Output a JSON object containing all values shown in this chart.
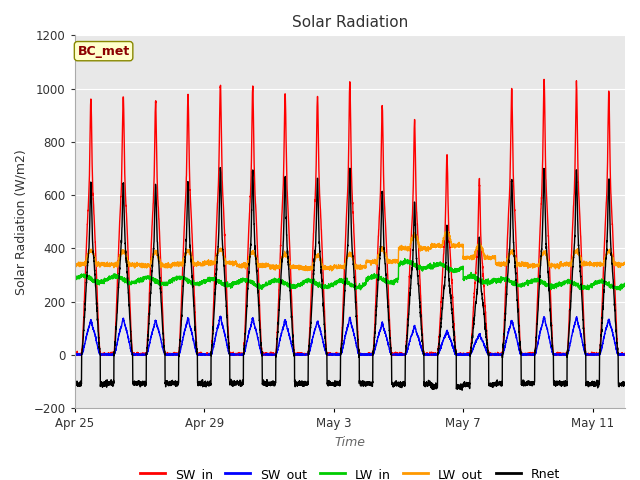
{
  "title": "Solar Radiation",
  "ylabel": "Solar Radiation (W/m2)",
  "xlabel": "Time",
  "annotation": "BC_met",
  "ylim": [
    -200,
    1200
  ],
  "n_days": 17,
  "points_per_day": 288,
  "xtick_labels": [
    "Apr 25",
    "Apr 29",
    "May 3",
    "May 7",
    "May 11"
  ],
  "xtick_positions": [
    0,
    4,
    8,
    12,
    16
  ],
  "series_colors": {
    "SW_in": "#ff0000",
    "SW_out": "#0000ff",
    "LW_in": "#00cc00",
    "LW_out": "#ff9900",
    "Rnet": "#000000"
  },
  "linewidth": 1.0,
  "background_color": "#ffffff",
  "plot_bg_color": "#e8e8e8",
  "grid_color": "#ffffff",
  "SW_in_base": [
    650,
    660,
    640,
    660,
    680,
    670,
    660,
    655,
    670,
    620,
    570,
    480,
    420,
    660,
    680,
    670,
    650
  ],
  "SW_in_spike": [
    960,
    970,
    950,
    970,
    1010,
    1005,
    980,
    970,
    1025,
    930,
    880,
    750,
    650,
    1000,
    1035,
    1025,
    990
  ],
  "SW_out_base": [
    110,
    115,
    110,
    115,
    120,
    115,
    110,
    108,
    115,
    100,
    90,
    75,
    65,
    110,
    120,
    120,
    115
  ],
  "SW_out_spike": [
    130,
    135,
    128,
    138,
    145,
    138,
    130,
    125,
    138,
    118,
    108,
    90,
    78,
    130,
    142,
    140,
    132
  ],
  "LW_in_vals": [
    285,
    283,
    278,
    278,
    273,
    269,
    268,
    266,
    266,
    283,
    338,
    328,
    283,
    273,
    268,
    263,
    263
  ],
  "LW_out_vals": [
    390,
    388,
    385,
    390,
    395,
    385,
    378,
    372,
    378,
    398,
    448,
    458,
    412,
    388,
    382,
    388,
    388
  ],
  "LW_out_night": [
    340,
    338,
    335,
    340,
    345,
    335,
    330,
    325,
    330,
    350,
    400,
    410,
    365,
    340,
    335,
    340,
    340
  ],
  "Rnet_base": [
    430,
    435,
    425,
    435,
    450,
    445,
    435,
    430,
    445,
    410,
    370,
    300,
    260,
    435,
    450,
    445,
    430
  ],
  "Rnet_spike": [
    645,
    650,
    640,
    650,
    700,
    695,
    670,
    660,
    695,
    615,
    570,
    480,
    430,
    660,
    700,
    690,
    660
  ],
  "Rnet_night": [
    -110,
    -108,
    -108,
    -108,
    -108,
    -108,
    -108,
    -108,
    -108,
    -108,
    -110,
    -120,
    -112,
    -108,
    -108,
    -108,
    -110
  ]
}
